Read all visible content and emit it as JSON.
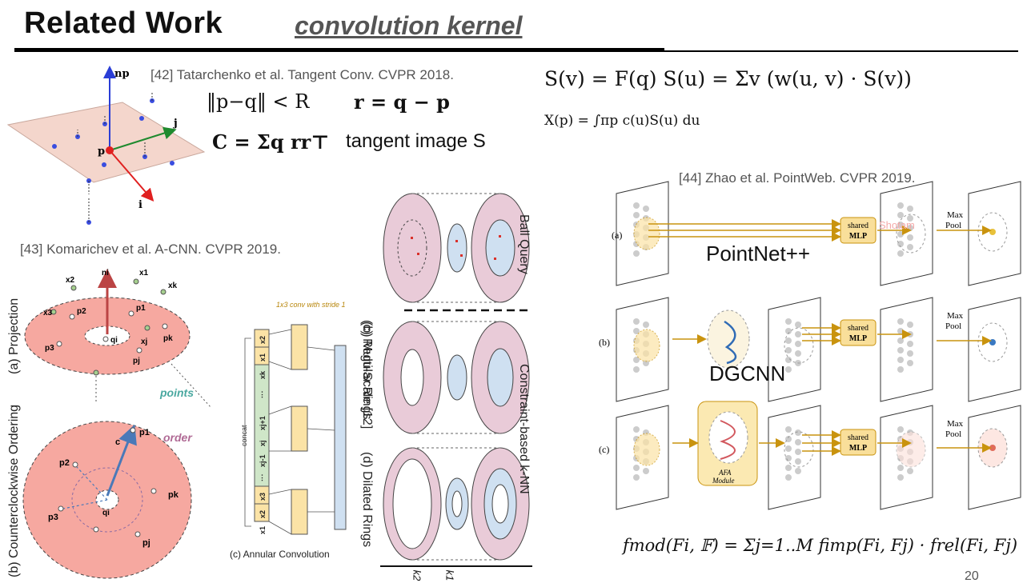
{
  "slide": {
    "title": "Related Work",
    "subtitle": "convolution kernel",
    "page_number": "20"
  },
  "tangent_conv": {
    "citation": "[42] Tatarchenko et al. Tangent Conv. CVPR 2018.",
    "eq1a": "‖p−q‖ < R",
    "eq1b": "r = q − p",
    "eq2a": "C = Σq rr⊤",
    "eq2b": "tangent image S",
    "eq3": "S(v) = F(q) S(u) = Σv (w(u, v) · S(v))",
    "eq4": "X(p) = ∫πp c(u)S(u) du",
    "fig_labels": {
      "normal": "np",
      "point": "p",
      "axis_j": "j",
      "axis_i": "i"
    }
  },
  "acnn": {
    "citation": "[43] Komarichev et al. A-CNN. CVPR 2019.",
    "panel_a": "(a) Projection",
    "panel_b": "(b) Counterclockwise Ordering",
    "panel_c": "(c) Annular Convolution",
    "points_label": "points",
    "order_label": "order",
    "concat_label": "concat",
    "conv_note": "1x3 conv with stride 1",
    "top_points": [
      "x2",
      "ni",
      "x1",
      "xk",
      "p1",
      "p2",
      "x3",
      "pk",
      "qi",
      "xj",
      "p3",
      "pj"
    ],
    "bottom_points": [
      "p1",
      "c",
      "p2",
      "pk",
      "qi",
      "p3",
      "pj"
    ],
    "column_cells": [
      "x2",
      "x1",
      "xk",
      "⋮",
      "xj+1",
      "xj",
      "xj-1",
      "⋮",
      "x3",
      "x2",
      "x1"
    ]
  },
  "rings": {
    "b": "(b) Multi-Scale [12]",
    "c": "(c) Regular Rings",
    "d": "(d) Dilated Rings",
    "ball_query": "Ball Query",
    "constraint_knn": "Constraint-based k-NN",
    "k2": "k2",
    "k1": "k1"
  },
  "pointweb": {
    "citation": "[44] Zhao et al. PointWeb. CVPR 2019.",
    "rows": [
      "(a)",
      "(b)",
      "(c)"
    ],
    "shared": "shared",
    "mlp": "MLP",
    "max": "Max",
    "pool": "Pool",
    "pointnet": "PointNet++",
    "dgcnn": "DGCNN",
    "afa_line1": "AFA",
    "afa_line2": "Module",
    "faint_text": "Shotam",
    "formula": "fmod(Fi, 𝔽) = Σj=1..M fimp(Fi, Fj) · frel(Fi, Fj)"
  },
  "colors": {
    "salmon": "#f6a8a0",
    "ring_pink": "#e9cbd8",
    "ring_blue": "#cfe0f1",
    "mlp_fill": "#f9df9a",
    "arrow_gold": "#c9930e",
    "column_green": "#cfe6c8",
    "column_yellow": "#fbe3a6"
  }
}
